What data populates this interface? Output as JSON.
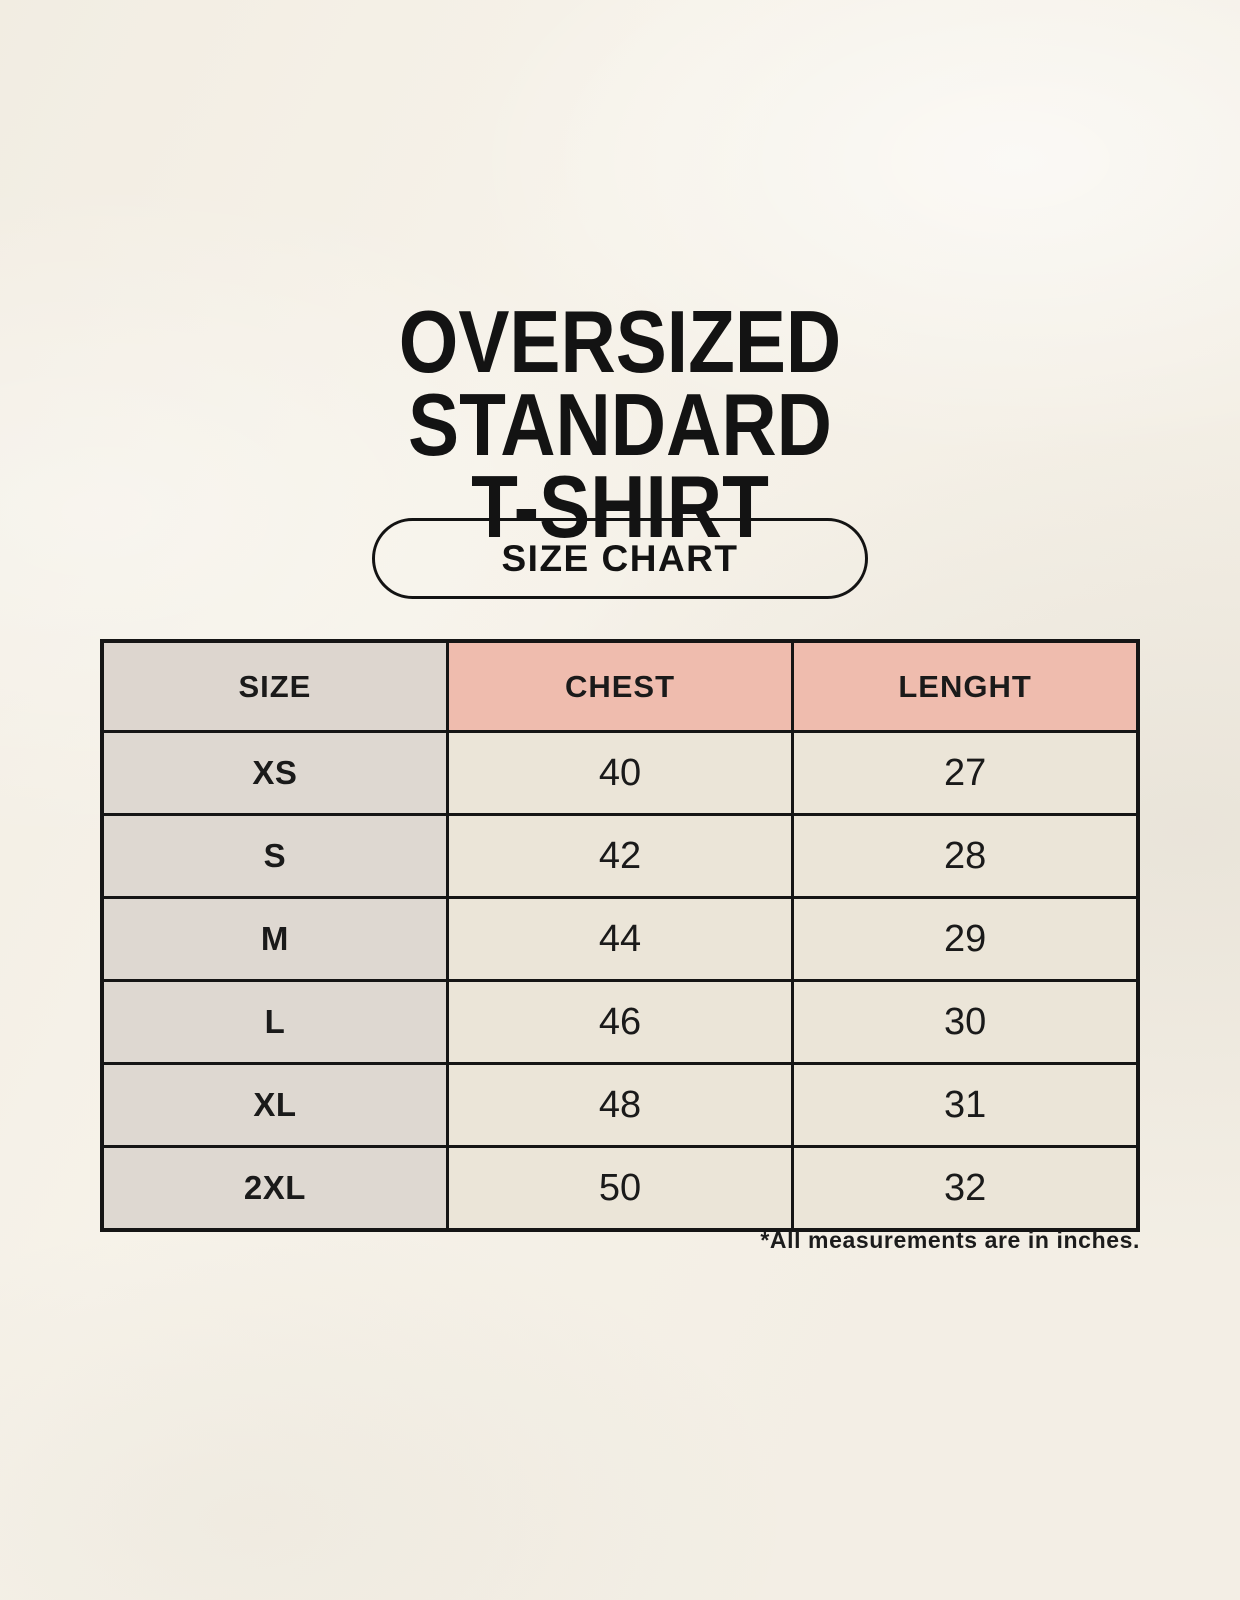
{
  "page": {
    "title_lines": [
      "OVERSIZED",
      "STANDARD",
      "T-SHIRT"
    ],
    "badge_label": "SIZE CHART",
    "footnote": "*All measurements are in inches."
  },
  "table": {
    "headers": [
      "SIZE",
      "CHEST",
      "LENGHT"
    ],
    "rows": [
      [
        "XS",
        "40",
        "27"
      ],
      [
        "S",
        "42",
        "28"
      ],
      [
        "M",
        "44",
        "29"
      ],
      [
        "L",
        "46",
        "30"
      ],
      [
        "XL",
        "48",
        "31"
      ],
      [
        "2XL",
        "50",
        "32"
      ]
    ]
  },
  "chart_data": {
    "type": "table",
    "title": "OVERSIZED STANDARD T-SHIRT",
    "subtitle": "SIZE CHART",
    "columns": [
      "SIZE",
      "CHEST",
      "LENGHT"
    ],
    "rows": [
      {
        "size": "XS",
        "chest": 40,
        "length": 27
      },
      {
        "size": "S",
        "chest": 42,
        "length": 28
      },
      {
        "size": "M",
        "chest": 44,
        "length": 29
      },
      {
        "size": "L",
        "chest": 46,
        "length": 30
      },
      {
        "size": "XL",
        "chest": 48,
        "length": 31
      },
      {
        "size": "2XL",
        "chest": 50,
        "length": 32
      }
    ],
    "units": "inches",
    "note": "*All measurements are in inches."
  },
  "colors": {
    "background": "#f6f2e9",
    "size_column_bg": "#ded8d1",
    "header_size_bg": "#ddd6cf",
    "header_accent_bg": "#efbcae",
    "value_cell_bg": "#ebe5d8",
    "border": "#151515",
    "text": "#1a1a1a"
  }
}
